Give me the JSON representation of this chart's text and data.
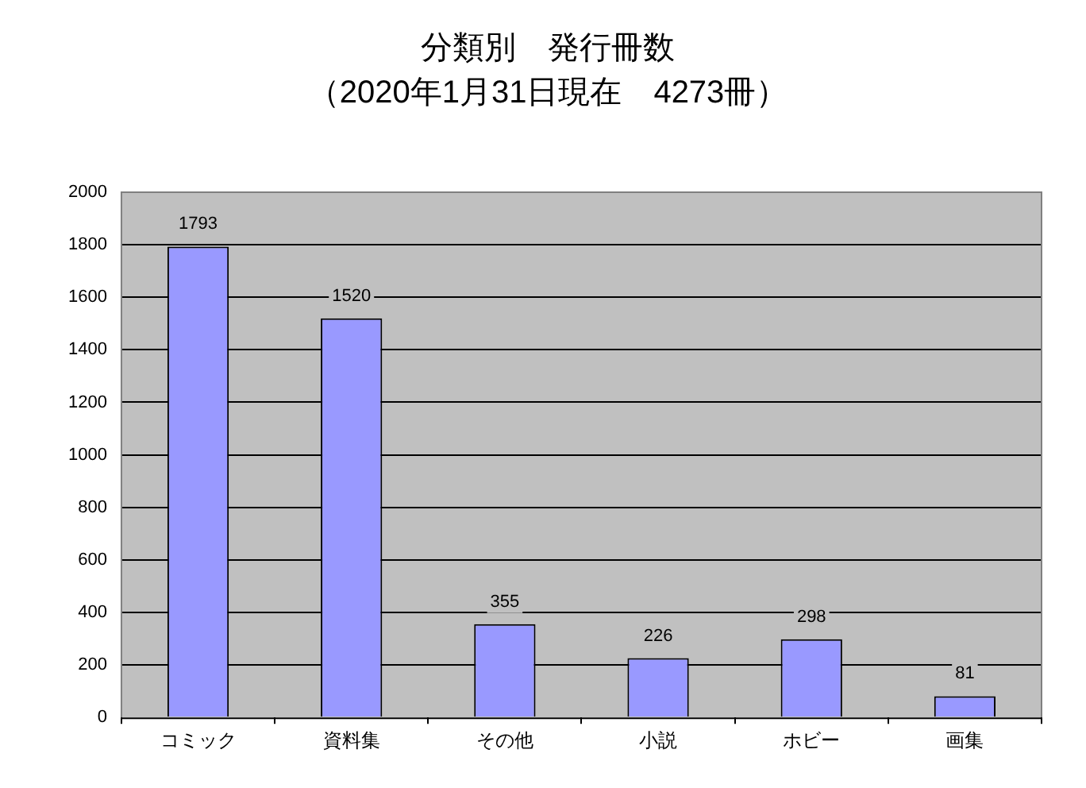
{
  "chart_data": {
    "type": "bar",
    "title": "分類別　発行冊数",
    "subtitle": "（2020年1月31日現在　4273冊）",
    "categories": [
      "コミック",
      "資料集",
      "その他",
      "小説",
      "ホビー",
      "画集"
    ],
    "values": [
      1793,
      1520,
      355,
      226,
      298,
      81
    ],
    "color": "#9999ff",
    "ylim": [
      0,
      2000
    ],
    "yticks": [
      0,
      200,
      400,
      600,
      800,
      1000,
      1200,
      1400,
      1600,
      1800,
      2000
    ],
    "grid": "y",
    "data_labels": true,
    "legend": false
  }
}
